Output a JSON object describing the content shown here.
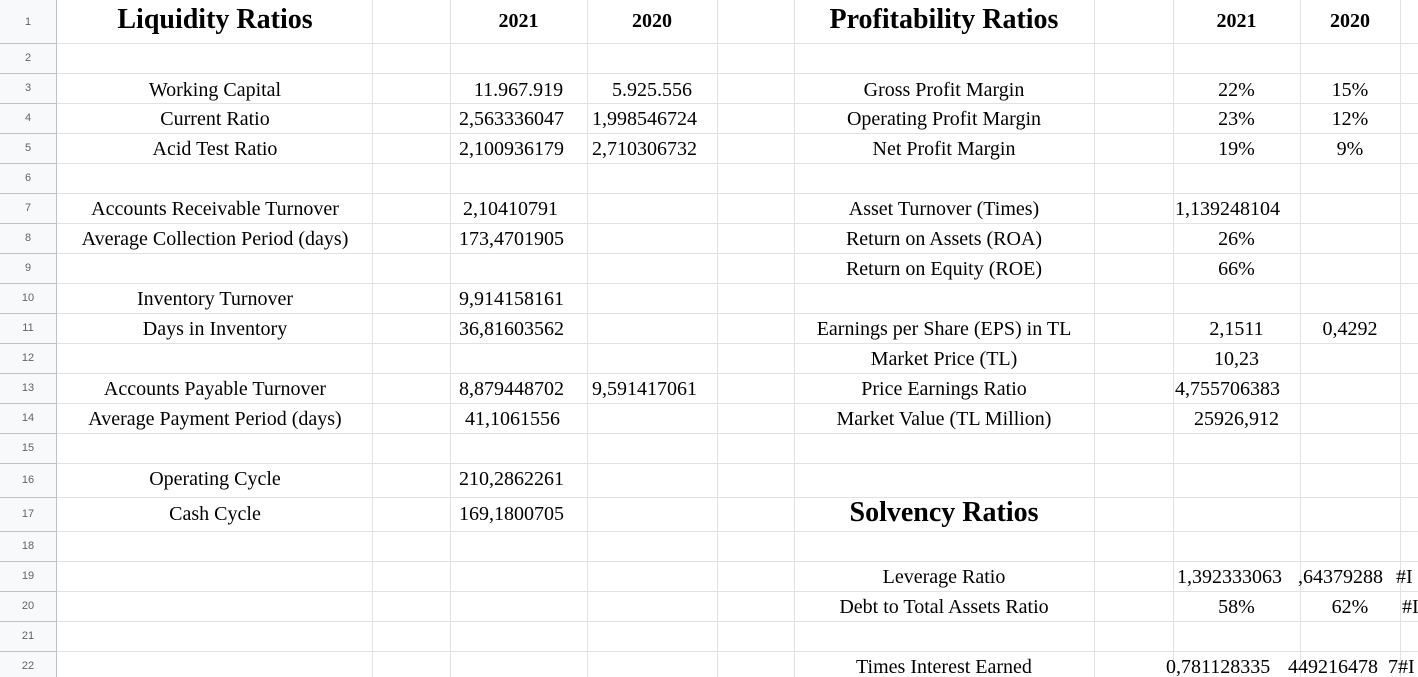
{
  "row_numbers": [
    "1",
    "2",
    "3",
    "4",
    "5",
    "6",
    "7",
    "8",
    "9",
    "10",
    "11",
    "12",
    "13",
    "14",
    "15",
    "16",
    "17",
    "18",
    "19",
    "20",
    "21",
    "22"
  ],
  "liquidity": {
    "title": "Liquidity Ratios",
    "year_2021": "2021",
    "year_2020": "2020",
    "working_capital": {
      "label": "Working Capital",
      "v2021": "11.967.919",
      "v2020": "5.925.556"
    },
    "current_ratio": {
      "label": "Current Ratio",
      "v2021": "2,563336047",
      "v2020": "1,998546724"
    },
    "acid_test": {
      "label": "Acid Test Ratio",
      "v2021": "2,100936179",
      "v2020": "2,710306732"
    },
    "ar_turnover": {
      "label": "Accounts Receivable Turnover",
      "v2021": "2,10410791"
    },
    "avg_collection": {
      "label": "Average Collection Period (days)",
      "v2021": "173,4701905"
    },
    "inventory_turnover": {
      "label": "Inventory Turnover",
      "v2021": "9,914158161"
    },
    "days_inventory": {
      "label": "Days in Inventory",
      "v2021": "36,81603562"
    },
    "ap_turnover": {
      "label": "Accounts Payable Turnover",
      "v2021": "8,879448702",
      "v2020": "9,591417061"
    },
    "avg_payment": {
      "label": "Average Payment Period (days)",
      "v2021": "41,1061556"
    },
    "operating_cycle": {
      "label": "Operating Cycle",
      "v2021": "210,2862261"
    },
    "cash_cycle": {
      "label": "Cash Cycle",
      "v2021": "169,1800705"
    }
  },
  "profitability": {
    "title": "Profitability Ratios",
    "year_2021": "2021",
    "year_2020": "2020",
    "gross_margin": {
      "label": "Gross Profit Margin",
      "v2021": "22%",
      "v2020": "15%"
    },
    "operating_margin": {
      "label": "Operating Profit Margin",
      "v2021": "23%",
      "v2020": "12%"
    },
    "net_margin": {
      "label": "Net Profit Margin",
      "v2021": "19%",
      "v2020": "9%"
    },
    "asset_turnover": {
      "label": "Asset Turnover (Times)",
      "v2021": "1,139248104"
    },
    "roa": {
      "label": "Return on Assets (ROA)",
      "v2021": "26%"
    },
    "roe": {
      "label": "Return on Equity (ROE)",
      "v2021": "66%"
    },
    "eps": {
      "label": "Earnings per Share (EPS) in TL",
      "v2021": "2,1511",
      "v2020": "0,4292"
    },
    "market_price": {
      "label": "Market Price (TL)",
      "v2021": "10,23"
    },
    "pe_ratio": {
      "label": "Price Earnings Ratio",
      "v2021": "4,755706383"
    },
    "market_value": {
      "label": "Market Value (TL Million)",
      "v2021": "25926,912"
    }
  },
  "solvency": {
    "title": "Solvency Ratios",
    "leverage": {
      "label": "Leverage Ratio",
      "v2021": "1,392333063",
      "v2020": ",64379288",
      "extra": "#I"
    },
    "debt_to_assets": {
      "label": "Debt to Total Assets Ratio",
      "v2021": "58%",
      "v2020": "62%",
      "extra": "#I"
    },
    "times_interest": {
      "label": "Times Interest Earned",
      "v2021": "0,781128335",
      "v2020": "449216478",
      "extra": "7#I"
    }
  }
}
